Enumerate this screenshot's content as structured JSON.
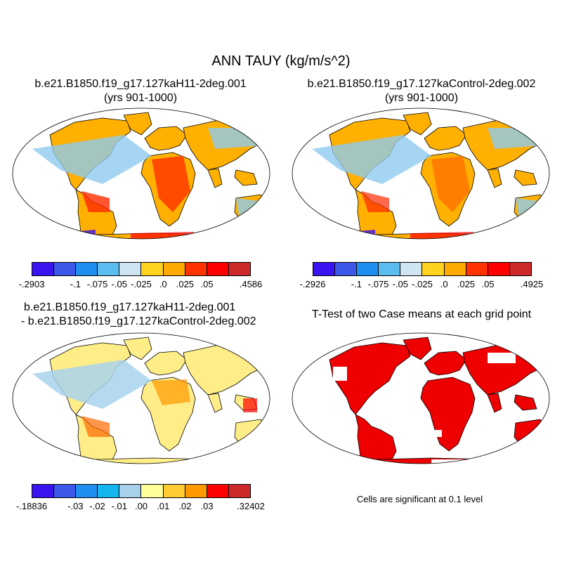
{
  "title": "ANN TAUY (kg/m/s^2)",
  "panels": [
    {
      "title_line1": "b.e21.B1850.f19_g17.127kaH11-2deg.001",
      "title_line2": "(yrs 901-1000)"
    },
    {
      "title_line1": "b.e21.B1850.f19_g17.127kaControl-2deg.002",
      "title_line2": "(yrs 901-1000)"
    },
    {
      "title_line1": "b.e21.B1850.f19_g17.127kaH11-2deg.001",
      "title_line2": "- b.e21.B1850.f19_g17.127kaControl-2deg.002"
    },
    {
      "title_line1": "T-Test of two Case means at each grid point"
    }
  ],
  "colorbars": [
    {
      "colors": [
        "#3b12f0",
        "#3c58e8",
        "#1f8ef0",
        "#5bbcf0",
        "#cfe6f2",
        "#ffd21f",
        "#ffaa00",
        "#ff3300",
        "#ff0000",
        "#cc2a2a"
      ],
      "labels": [
        "-.2903",
        "-.1",
        "-.075",
        "-.05",
        "-.025",
        ".0",
        ".025",
        ".05",
        ".4586"
      ]
    },
    {
      "colors": [
        "#3b12f0",
        "#3c58e8",
        "#1f8ef0",
        "#5bbcf0",
        "#cfe6f2",
        "#ffd21f",
        "#ffaa00",
        "#ff3300",
        "#ff0000",
        "#cc2a2a"
      ],
      "labels": [
        "-.2926",
        "-.1",
        "-.075",
        "-.05",
        "-.025",
        ".0",
        ".025",
        ".05",
        ".4925"
      ]
    },
    {
      "colors": [
        "#3b12f0",
        "#3c58e8",
        "#1f8ef0",
        "#17b5f0",
        "#a8d2ec",
        "#ffff99",
        "#ffcc33",
        "#ff9900",
        "#ff0000",
        "#cc2a2a"
      ],
      "labels": [
        "-.18836",
        "-.03",
        "-.02",
        "-.01",
        ".00",
        ".01",
        ".02",
        ".03",
        ".32402"
      ]
    }
  ],
  "significance_note": "Cells are significant at 0.1 level"
}
